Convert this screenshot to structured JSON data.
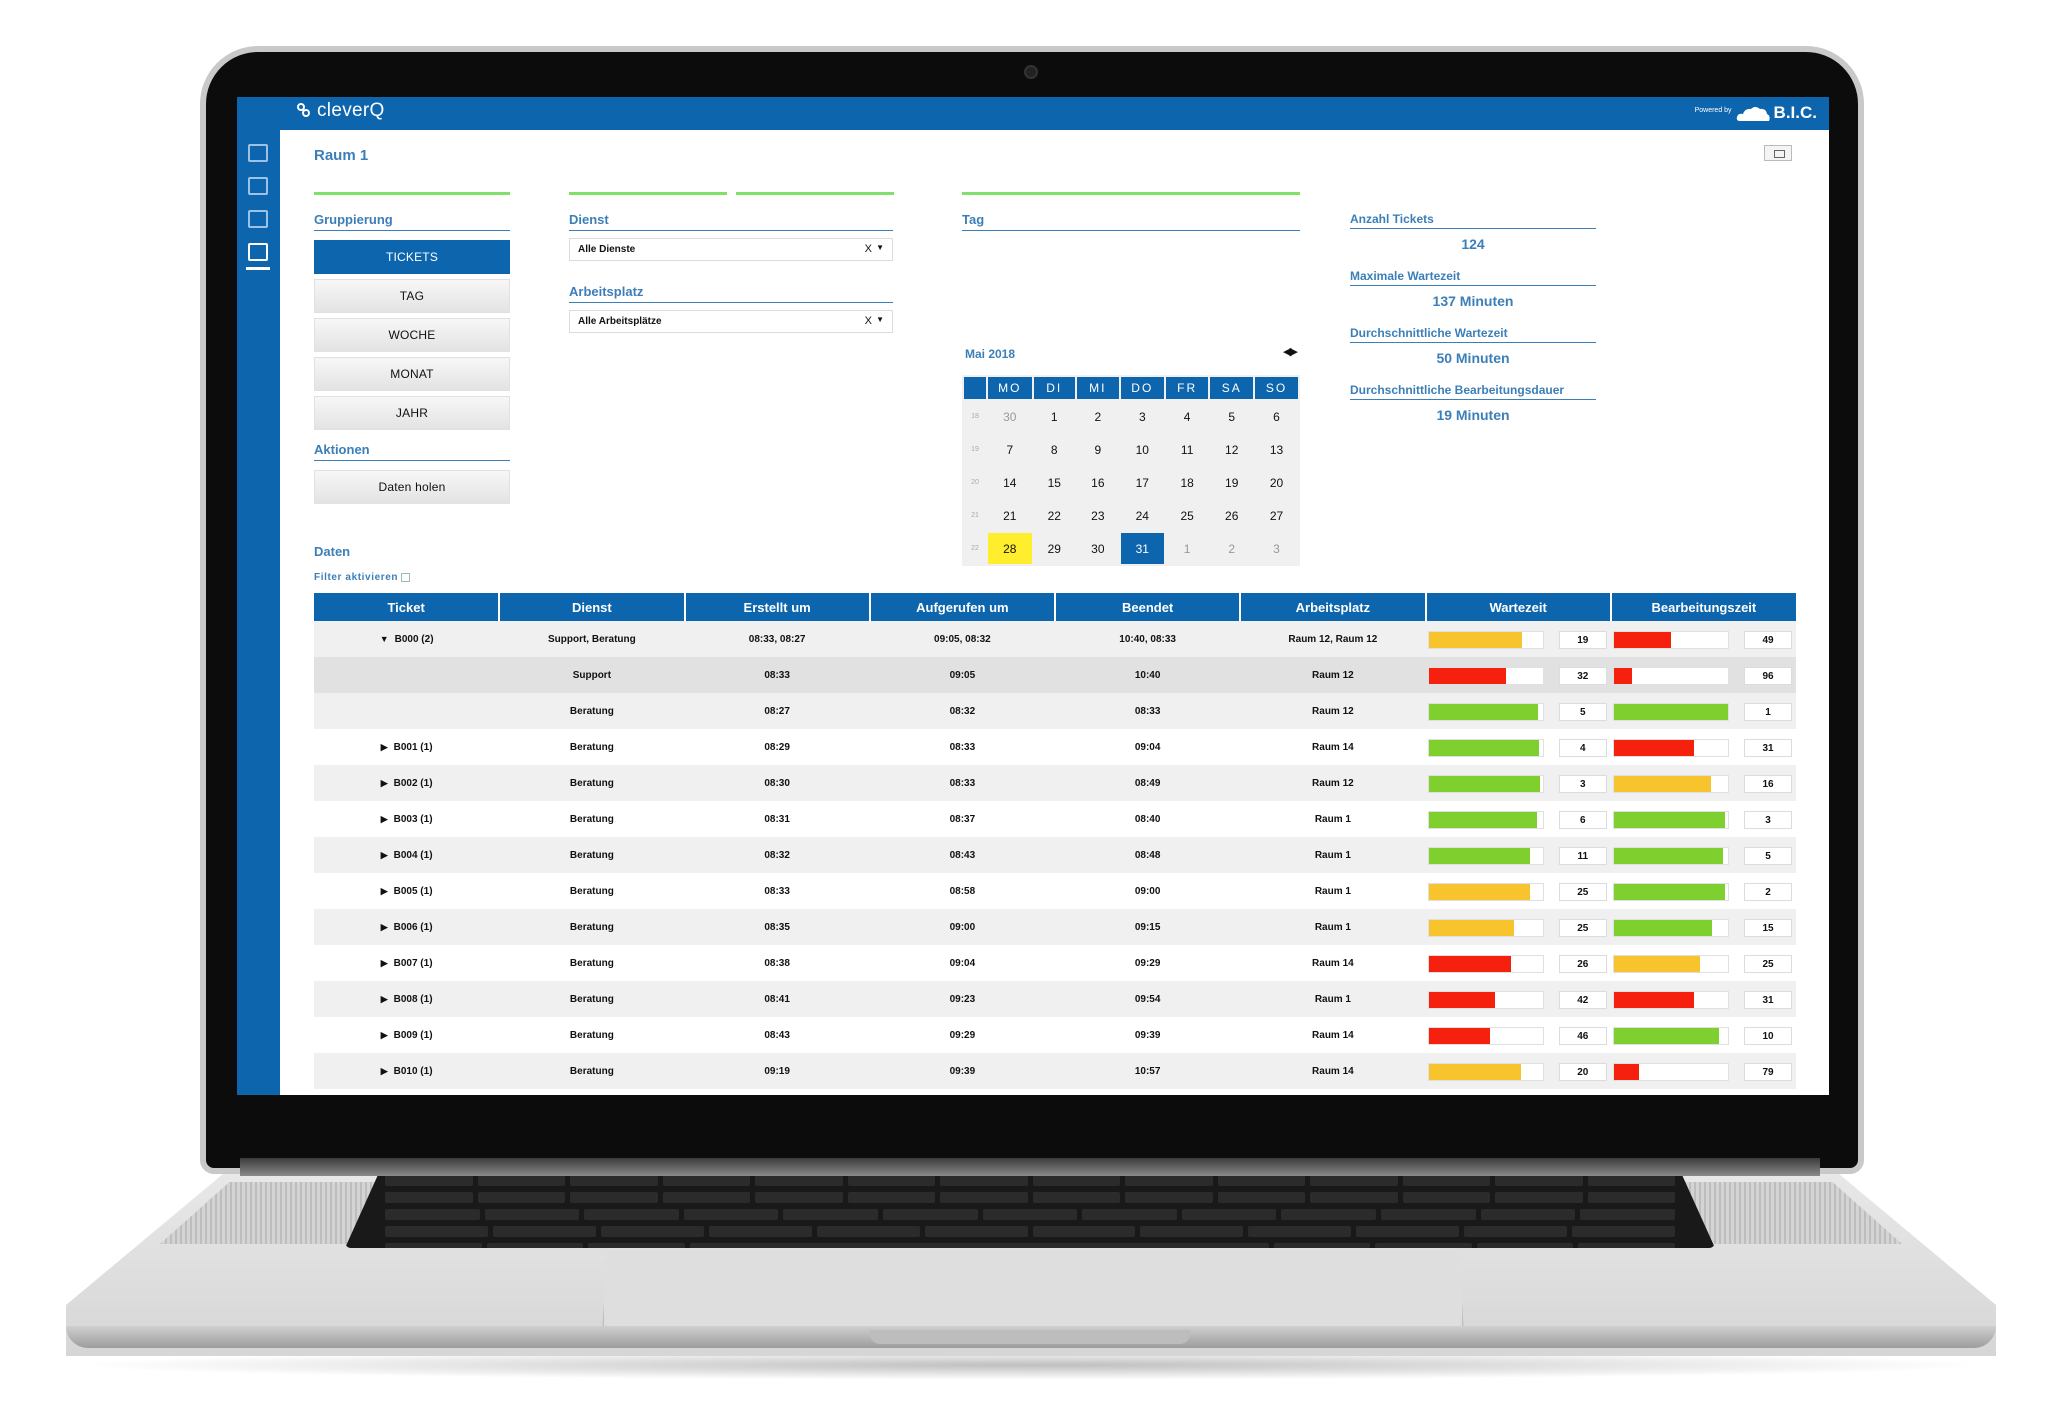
{
  "colors": {
    "accent": "#0c65ad",
    "title": "#3c7fb8",
    "green": "#7fd02f",
    "yellow": "#f8c42d",
    "red": "#f5200e",
    "highlight": "#ffee2d",
    "divider": "#7fe06a"
  },
  "topbar": {
    "brand": "cleverQ",
    "powered_by": "Powered by",
    "vendor": "B.I.C."
  },
  "sidebar": {
    "icons": [
      "monitor-icon",
      "list-icon",
      "calendar-icon",
      "chart-icon"
    ],
    "active": "chart-icon"
  },
  "page": {
    "title": "Raum 1"
  },
  "gruppierung": {
    "label": "Gruppierung",
    "options": [
      "TICKETS",
      "TAG",
      "WOCHE",
      "MONAT",
      "JAHR"
    ],
    "active": "TICKETS"
  },
  "aktionen": {
    "label": "Aktionen",
    "button": "Daten holen"
  },
  "filters": {
    "dienst": {
      "label": "Dienst",
      "value": "Alle Dienste",
      "clear": "X"
    },
    "arbeitsplatz": {
      "label": "Arbeitsplatz",
      "value": "Alle Arbeitsplätze",
      "clear": "X"
    }
  },
  "calendar": {
    "label": "Tag",
    "month": "Mai 2018",
    "weekdays": [
      "MO",
      "DI",
      "MI",
      "DO",
      "FR",
      "SA",
      "SO"
    ],
    "weeks": [
      {
        "wk": "18",
        "days": [
          "30",
          "1",
          "2",
          "3",
          "4",
          "5",
          "6"
        ]
      },
      {
        "wk": "19",
        "days": [
          "7",
          "8",
          "9",
          "10",
          "11",
          "12",
          "13"
        ]
      },
      {
        "wk": "20",
        "days": [
          "14",
          "15",
          "16",
          "17",
          "18",
          "19",
          "20"
        ]
      },
      {
        "wk": "21",
        "days": [
          "21",
          "22",
          "23",
          "24",
          "25",
          "26",
          "27"
        ]
      },
      {
        "wk": "22",
        "days": [
          "28",
          "29",
          "30",
          "31",
          "1",
          "2",
          "3"
        ]
      }
    ],
    "highlighted": "28",
    "selected": "31"
  },
  "stats": [
    {
      "label": "Anzahl Tickets",
      "value": "124"
    },
    {
      "label": "Maximale Wartezeit",
      "value": "137 Minuten"
    },
    {
      "label": "Durchschnittliche Wartezeit",
      "value": "50 Minuten"
    },
    {
      "label": "Durchschnittliche Bearbeitungsdauer",
      "value": "19 Minuten"
    }
  ],
  "daten": {
    "label": "Daten",
    "filter_label": "Filter aktivieren"
  },
  "table": {
    "headers": [
      "Ticket",
      "Dienst",
      "Erstellt um",
      "Aufgerufen um",
      "Beendet",
      "Arbeitsplatz",
      "Wartezeit",
      "Bearbeitungszeit"
    ],
    "rows": [
      {
        "ticket": "B000 (2)",
        "arrow": "▼",
        "dienst": "Support, Beratung",
        "erstellt": "08:33, 08:27",
        "aufgerufen": "09:05, 08:32",
        "beendet": "10:40, 08:33",
        "platz": "Raum 12, Raum 12",
        "warte": "19",
        "warte_level": 0.82,
        "warte_color": "yellow",
        "bearb": "49",
        "bearb_level": 0.5,
        "bearb_color": "red",
        "style": "odd"
      },
      {
        "ticket": "",
        "arrow": "",
        "dienst": "Support",
        "erstellt": "08:33",
        "aufgerufen": "09:05",
        "beendet": "10:40",
        "platz": "Raum 12",
        "warte": "32",
        "warte_level": 0.68,
        "warte_color": "red",
        "bearb": "96",
        "bearb_level": 0.16,
        "bearb_color": "red",
        "style": "sub1"
      },
      {
        "ticket": "",
        "arrow": "",
        "dienst": "Beratung",
        "erstellt": "08:27",
        "aufgerufen": "08:32",
        "beendet": "08:33",
        "platz": "Raum 12",
        "warte": "5",
        "warte_level": 0.96,
        "warte_color": "green",
        "bearb": "1",
        "bearb_level": 1.0,
        "bearb_color": "green",
        "style": "odd"
      },
      {
        "ticket": "B001 (1)",
        "arrow": "▶",
        "dienst": "Beratung",
        "erstellt": "08:29",
        "aufgerufen": "08:33",
        "beendet": "09:04",
        "platz": "Raum 14",
        "warte": "4",
        "warte_level": 0.97,
        "warte_color": "green",
        "bearb": "31",
        "bearb_level": 0.7,
        "bearb_color": "red",
        "style": "even"
      },
      {
        "ticket": "B002 (1)",
        "arrow": "▶",
        "dienst": "Beratung",
        "erstellt": "08:30",
        "aufgerufen": "08:33",
        "beendet": "08:49",
        "platz": "Raum 12",
        "warte": "3",
        "warte_level": 0.98,
        "warte_color": "green",
        "bearb": "16",
        "bearb_level": 0.85,
        "bearb_color": "yellow",
        "style": "odd"
      },
      {
        "ticket": "B003 (1)",
        "arrow": "▶",
        "dienst": "Beratung",
        "erstellt": "08:31",
        "aufgerufen": "08:37",
        "beendet": "08:40",
        "platz": "Raum 1",
        "warte": "6",
        "warte_level": 0.95,
        "warte_color": "green",
        "bearb": "3",
        "bearb_level": 0.98,
        "bearb_color": "green",
        "style": "even"
      },
      {
        "ticket": "B004 (1)",
        "arrow": "▶",
        "dienst": "Beratung",
        "erstellt": "08:32",
        "aufgerufen": "08:43",
        "beendet": "08:48",
        "platz": "Raum 1",
        "warte": "11",
        "warte_level": 0.89,
        "warte_color": "green",
        "bearb": "5",
        "bearb_level": 0.96,
        "bearb_color": "green",
        "style": "odd"
      },
      {
        "ticket": "B005 (1)",
        "arrow": "▶",
        "dienst": "Beratung",
        "erstellt": "08:33",
        "aufgerufen": "08:58",
        "beendet": "09:00",
        "platz": "Raum 1",
        "warte": "25",
        "warte_level": 0.89,
        "warte_color": "yellow",
        "bearb": "2",
        "bearb_level": 0.98,
        "bearb_color": "green",
        "style": "even"
      },
      {
        "ticket": "B006 (1)",
        "arrow": "▶",
        "dienst": "Beratung",
        "erstellt": "08:35",
        "aufgerufen": "09:00",
        "beendet": "09:15",
        "platz": "Raum 1",
        "warte": "25",
        "warte_level": 0.75,
        "warte_color": "yellow",
        "bearb": "15",
        "bearb_level": 0.86,
        "bearb_color": "green",
        "style": "odd"
      },
      {
        "ticket": "B007 (1)",
        "arrow": "▶",
        "dienst": "Beratung",
        "erstellt": "08:38",
        "aufgerufen": "09:04",
        "beendet": "09:29",
        "platz": "Raum 14",
        "warte": "26",
        "warte_level": 0.72,
        "warte_color": "red",
        "bearb": "25",
        "bearb_level": 0.76,
        "bearb_color": "yellow",
        "style": "even"
      },
      {
        "ticket": "B008 (1)",
        "arrow": "▶",
        "dienst": "Beratung",
        "erstellt": "08:41",
        "aufgerufen": "09:23",
        "beendet": "09:54",
        "platz": "Raum 1",
        "warte": "42",
        "warte_level": 0.58,
        "warte_color": "red",
        "bearb": "31",
        "bearb_level": 0.7,
        "bearb_color": "red",
        "style": "odd"
      },
      {
        "ticket": "B009 (1)",
        "arrow": "▶",
        "dienst": "Beratung",
        "erstellt": "08:43",
        "aufgerufen": "09:29",
        "beendet": "09:39",
        "platz": "Raum 14",
        "warte": "46",
        "warte_level": 0.54,
        "warte_color": "red",
        "bearb": "10",
        "bearb_level": 0.92,
        "bearb_color": "green",
        "style": "even"
      },
      {
        "ticket": "B010 (1)",
        "arrow": "▶",
        "dienst": "Beratung",
        "erstellt": "09:19",
        "aufgerufen": "09:39",
        "beendet": "10:57",
        "platz": "Raum 14",
        "warte": "20",
        "warte_level": 0.81,
        "warte_color": "yellow",
        "bearb": "79",
        "bearb_level": 0.22,
        "bearb_color": "red",
        "style": "odd"
      }
    ]
  }
}
